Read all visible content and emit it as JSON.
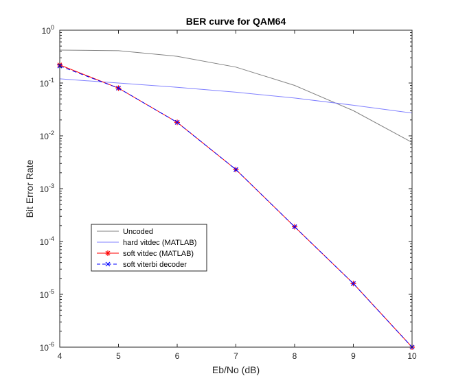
{
  "chart_data": {
    "type": "line",
    "title": "BER curve for QAM64",
    "xlabel": "Eb/No (dB)",
    "ylabel": "Bit Error Rate",
    "xlim": [
      4,
      10
    ],
    "ylim": [
      1e-06,
      1
    ],
    "yscale": "log",
    "grid": false,
    "legend_position": "lower-left",
    "x_ticks": [
      4,
      5,
      6,
      7,
      8,
      9,
      10
    ],
    "x_tick_labels": [
      "4",
      "5",
      "6",
      "7",
      "8",
      "9",
      "10"
    ],
    "y_ticks": [
      1e-06,
      1e-05,
      0.0001,
      0.001,
      0.01,
      0.1,
      1
    ],
    "y_tick_labels": [
      {
        "base": "10",
        "exp": "-6"
      },
      {
        "base": "10",
        "exp": "-5"
      },
      {
        "base": "10",
        "exp": "-4"
      },
      {
        "base": "10",
        "exp": "-3"
      },
      {
        "base": "10",
        "exp": "-2"
      },
      {
        "base": "10",
        "exp": "-1"
      },
      {
        "base": "10",
        "exp": "0"
      }
    ],
    "series": [
      {
        "name": "Uncoded",
        "color": "#808080",
        "line_style": "solid",
        "marker": "none",
        "x": [
          4,
          5,
          6,
          7,
          8,
          9,
          10
        ],
        "y": [
          0.42,
          0.41,
          0.32,
          0.2,
          0.09,
          0.03,
          0.0075
        ]
      },
      {
        "name": "hard vitdec (MATLAB)",
        "color": "#8080ff",
        "line_style": "solid",
        "marker": "none",
        "x": [
          4,
          5,
          6,
          7,
          8,
          9,
          10
        ],
        "y": [
          0.12,
          0.1,
          0.083,
          0.067,
          0.052,
          0.038,
          0.027
        ]
      },
      {
        "name": "soft vitdec (MATLAB)",
        "color": "#ff0000",
        "line_style": "solid",
        "marker": "asterisk",
        "x": [
          4,
          5,
          6,
          7,
          8,
          9,
          10
        ],
        "y": [
          0.22,
          0.08,
          0.018,
          0.0023,
          0.00019,
          1.6e-05,
          1e-06
        ]
      },
      {
        "name": "soft viterbi decoder",
        "color": "#0000ff",
        "line_style": "dashed",
        "marker": "x",
        "x": [
          4,
          5,
          6,
          7,
          8,
          9,
          10
        ],
        "y": [
          0.21,
          0.08,
          0.018,
          0.0023,
          0.00019,
          1.6e-05,
          1e-06
        ]
      }
    ]
  }
}
